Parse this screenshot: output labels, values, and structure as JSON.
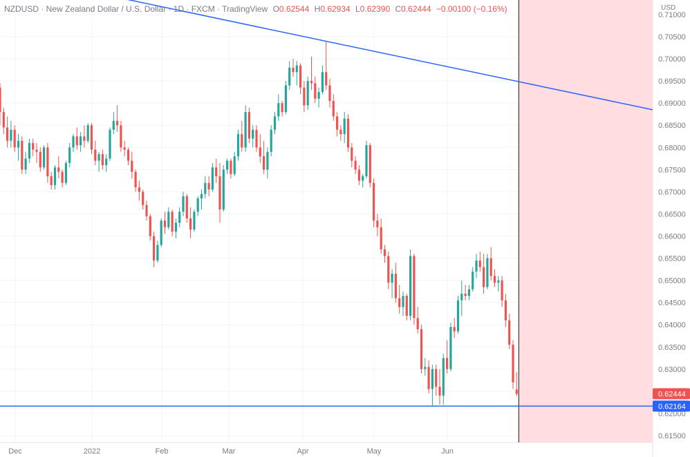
{
  "header": {
    "symbol_line": "NZDUSD · New Zealand Dollar / U.S. Dollar · 1D · FXCM · TradingView",
    "o_label": "O",
    "o_value": "0.62544",
    "h_label": "H",
    "h_value": "0.62934",
    "l_label": "L",
    "l_value": "0.62390",
    "c_label": "C",
    "c_value": "0.62444",
    "change": "−0.00100 (−0.16%)"
  },
  "price_axis": {
    "unit": "USD",
    "ticks": [
      "0.71000",
      "0.70500",
      "0.70000",
      "0.69500",
      "0.69000",
      "0.68500",
      "0.68000",
      "0.67500",
      "0.67000",
      "0.66500",
      "0.66000",
      "0.65500",
      "0.65000",
      "0.64500",
      "0.64000",
      "0.63500",
      "0.63000",
      "0.62500",
      "0.62000",
      "0.61500"
    ]
  },
  "time_axis": {
    "labels": [
      "Dec",
      "2022",
      "Feb",
      "Mar",
      "Apr",
      "May",
      "Jun"
    ]
  },
  "markers": {
    "last_price": {
      "label": "0.62444",
      "value": 0.62444,
      "color": "#ef5350"
    },
    "hline": {
      "label": "0.62164",
      "value": 0.62164,
      "color": "#2962ff"
    }
  },
  "colors": {
    "up": "#26a69a",
    "down": "#ef5350",
    "trendline": "#2962ff",
    "shade": "#ffdde0",
    "grid": "#f0f3fa"
  },
  "chart_data": {
    "type": "candlestick",
    "title": "NZDUSD · New Zealand Dollar / U.S. Dollar · 1D · FXCM · TradingView",
    "ylabel": "USD",
    "ylim": [
      0.6125,
      0.712
    ],
    "x_labels": [
      "Dec",
      "2022",
      "Feb",
      "Mar",
      "Apr",
      "May",
      "Jun"
    ],
    "trendline": {
      "start_value": 0.7145,
      "mid_value": 0.6965,
      "end_value": 0.6885
    },
    "horizontal_line": 0.62164,
    "candles": [
      [
        0.6935,
        0.6945,
        0.685,
        0.688
      ],
      [
        0.688,
        0.689,
        0.683,
        0.6845
      ],
      [
        0.6845,
        0.687,
        0.68,
        0.6815
      ],
      [
        0.6815,
        0.686,
        0.68,
        0.684
      ],
      [
        0.684,
        0.685,
        0.679,
        0.68
      ],
      [
        0.68,
        0.683,
        0.677,
        0.6815
      ],
      [
        0.6815,
        0.6825,
        0.674,
        0.675
      ],
      [
        0.675,
        0.679,
        0.674,
        0.6775
      ],
      [
        0.6775,
        0.682,
        0.6765,
        0.681
      ],
      [
        0.681,
        0.682,
        0.678,
        0.6795
      ],
      [
        0.6795,
        0.681,
        0.6765,
        0.679
      ],
      [
        0.679,
        0.68,
        0.6745,
        0.6755
      ],
      [
        0.6755,
        0.6805,
        0.675,
        0.68
      ],
      [
        0.68,
        0.681,
        0.672,
        0.6735
      ],
      [
        0.6735,
        0.6745,
        0.6705,
        0.6715
      ],
      [
        0.6715,
        0.676,
        0.6705,
        0.6755
      ],
      [
        0.6755,
        0.678,
        0.673,
        0.6745
      ],
      [
        0.6745,
        0.675,
        0.671,
        0.672
      ],
      [
        0.672,
        0.677,
        0.6715,
        0.6765
      ],
      [
        0.6765,
        0.681,
        0.6755,
        0.68
      ],
      [
        0.68,
        0.683,
        0.679,
        0.6825
      ],
      [
        0.6825,
        0.6845,
        0.6795,
        0.6805
      ],
      [
        0.6805,
        0.6835,
        0.679,
        0.6825
      ],
      [
        0.6825,
        0.685,
        0.68,
        0.6815
      ],
      [
        0.6815,
        0.6855,
        0.681,
        0.685
      ],
      [
        0.685,
        0.6855,
        0.6785,
        0.6795
      ],
      [
        0.6795,
        0.6815,
        0.676,
        0.677
      ],
      [
        0.677,
        0.679,
        0.6745,
        0.6785
      ],
      [
        0.6785,
        0.6795,
        0.675,
        0.676
      ],
      [
        0.676,
        0.6785,
        0.6745,
        0.6775
      ],
      [
        0.6775,
        0.6845,
        0.677,
        0.684
      ],
      [
        0.684,
        0.688,
        0.683,
        0.686
      ],
      [
        0.686,
        0.6895,
        0.6835,
        0.685
      ],
      [
        0.685,
        0.686,
        0.679,
        0.68
      ],
      [
        0.68,
        0.6815,
        0.678,
        0.6795
      ],
      [
        0.6795,
        0.68,
        0.676,
        0.677
      ],
      [
        0.677,
        0.679,
        0.673,
        0.6745
      ],
      [
        0.6745,
        0.675,
        0.67,
        0.671
      ],
      [
        0.671,
        0.6725,
        0.668,
        0.67
      ],
      [
        0.67,
        0.6705,
        0.666,
        0.667
      ],
      [
        0.667,
        0.668,
        0.6635,
        0.6645
      ],
      [
        0.6645,
        0.665,
        0.659,
        0.66
      ],
      [
        0.66,
        0.661,
        0.653,
        0.6545
      ],
      [
        0.6545,
        0.659,
        0.654,
        0.658
      ],
      [
        0.658,
        0.664,
        0.6575,
        0.6635
      ],
      [
        0.6635,
        0.6655,
        0.6605,
        0.662
      ],
      [
        0.662,
        0.6665,
        0.6615,
        0.6655
      ],
      [
        0.6655,
        0.666,
        0.66,
        0.661
      ],
      [
        0.661,
        0.664,
        0.6595,
        0.663
      ],
      [
        0.663,
        0.6665,
        0.662,
        0.6655
      ],
      [
        0.6655,
        0.67,
        0.6645,
        0.669
      ],
      [
        0.669,
        0.6695,
        0.663,
        0.664
      ],
      [
        0.664,
        0.6665,
        0.6595,
        0.6615
      ],
      [
        0.6615,
        0.666,
        0.661,
        0.6655
      ],
      [
        0.6655,
        0.669,
        0.6645,
        0.6685
      ],
      [
        0.6685,
        0.6705,
        0.666,
        0.6695
      ],
      [
        0.6695,
        0.6735,
        0.6685,
        0.672
      ],
      [
        0.672,
        0.6735,
        0.669,
        0.6705
      ],
      [
        0.6705,
        0.6765,
        0.67,
        0.6755
      ],
      [
        0.6755,
        0.6775,
        0.672,
        0.6735
      ],
      [
        0.6735,
        0.6765,
        0.663,
        0.666
      ],
      [
        0.666,
        0.676,
        0.6655,
        0.675
      ],
      [
        0.675,
        0.6775,
        0.674,
        0.677
      ],
      [
        0.677,
        0.6775,
        0.673,
        0.674
      ],
      [
        0.674,
        0.679,
        0.6735,
        0.678
      ],
      [
        0.678,
        0.684,
        0.677,
        0.683
      ],
      [
        0.683,
        0.686,
        0.679,
        0.68
      ],
      [
        0.68,
        0.6895,
        0.679,
        0.688
      ],
      [
        0.688,
        0.689,
        0.681,
        0.682
      ],
      [
        0.682,
        0.685,
        0.68,
        0.684
      ],
      [
        0.684,
        0.685,
        0.679,
        0.68
      ],
      [
        0.68,
        0.683,
        0.6765,
        0.678
      ],
      [
        0.678,
        0.6815,
        0.674,
        0.675
      ],
      [
        0.675,
        0.68,
        0.673,
        0.679
      ],
      [
        0.679,
        0.685,
        0.678,
        0.684
      ],
      [
        0.684,
        0.688,
        0.683,
        0.687
      ],
      [
        0.687,
        0.692,
        0.686,
        0.69
      ],
      [
        0.69,
        0.6905,
        0.687,
        0.688
      ],
      [
        0.688,
        0.695,
        0.6875,
        0.694
      ],
      [
        0.694,
        0.6995,
        0.693,
        0.698
      ],
      [
        0.698,
        0.7,
        0.696,
        0.697
      ],
      [
        0.697,
        0.6995,
        0.694,
        0.6985
      ],
      [
        0.6985,
        0.699,
        0.692,
        0.6935
      ],
      [
        0.6935,
        0.695,
        0.688,
        0.6895
      ],
      [
        0.6895,
        0.696,
        0.6885,
        0.695
      ],
      [
        0.695,
        0.7005,
        0.693,
        0.6945
      ],
      [
        0.6945,
        0.696,
        0.69,
        0.691
      ],
      [
        0.691,
        0.6935,
        0.689,
        0.6925
      ],
      [
        0.6925,
        0.6985,
        0.692,
        0.697
      ],
      [
        0.697,
        0.704,
        0.693,
        0.694
      ],
      [
        0.694,
        0.6955,
        0.689,
        0.6905
      ],
      [
        0.6905,
        0.692,
        0.686,
        0.687
      ],
      [
        0.687,
        0.688,
        0.6825,
        0.684
      ],
      [
        0.684,
        0.685,
        0.6815,
        0.683
      ],
      [
        0.683,
        0.688,
        0.681,
        0.6865
      ],
      [
        0.6865,
        0.6875,
        0.679,
        0.68
      ],
      [
        0.68,
        0.681,
        0.6755,
        0.677
      ],
      [
        0.677,
        0.678,
        0.674,
        0.675
      ],
      [
        0.675,
        0.676,
        0.6715,
        0.6725
      ],
      [
        0.6725,
        0.674,
        0.671,
        0.6735
      ],
      [
        0.6735,
        0.6815,
        0.673,
        0.6805
      ],
      [
        0.6805,
        0.681,
        0.671,
        0.672
      ],
      [
        0.672,
        0.673,
        0.662,
        0.6635
      ],
      [
        0.6635,
        0.665,
        0.66,
        0.662
      ],
      [
        0.662,
        0.664,
        0.656,
        0.657
      ],
      [
        0.657,
        0.658,
        0.654,
        0.6555
      ],
      [
        0.6555,
        0.6565,
        0.648,
        0.6495
      ],
      [
        0.6495,
        0.6525,
        0.646,
        0.6515
      ],
      [
        0.6515,
        0.654,
        0.645,
        0.646
      ],
      [
        0.646,
        0.649,
        0.6425,
        0.644
      ],
      [
        0.644,
        0.6475,
        0.642,
        0.6465
      ],
      [
        0.6465,
        0.647,
        0.641,
        0.642
      ],
      [
        0.642,
        0.657,
        0.641,
        0.6555
      ],
      [
        0.6555,
        0.656,
        0.64,
        0.6415
      ],
      [
        0.6415,
        0.644,
        0.638,
        0.639
      ],
      [
        0.639,
        0.64,
        0.629,
        0.63
      ],
      [
        0.63,
        0.6325,
        0.6285,
        0.6305
      ],
      [
        0.6305,
        0.632,
        0.6245,
        0.6255
      ],
      [
        0.6255,
        0.631,
        0.6215,
        0.63
      ],
      [
        0.63,
        0.631,
        0.624,
        0.626
      ],
      [
        0.626,
        0.63,
        0.622,
        0.624
      ],
      [
        0.624,
        0.6335,
        0.622,
        0.6325
      ],
      [
        0.6325,
        0.6365,
        0.629,
        0.63
      ],
      [
        0.63,
        0.6405,
        0.6295,
        0.6395
      ],
      [
        0.6395,
        0.6415,
        0.637,
        0.6385
      ],
      [
        0.6385,
        0.6465,
        0.638,
        0.6455
      ],
      [
        0.6455,
        0.65,
        0.642,
        0.647
      ],
      [
        0.647,
        0.649,
        0.6455,
        0.6465
      ],
      [
        0.6465,
        0.649,
        0.6455,
        0.648
      ],
      [
        0.648,
        0.653,
        0.6475,
        0.652
      ],
      [
        0.652,
        0.656,
        0.6505,
        0.6545
      ],
      [
        0.6545,
        0.6565,
        0.652,
        0.653
      ],
      [
        0.653,
        0.656,
        0.647,
        0.6485
      ],
      [
        0.6485,
        0.656,
        0.648,
        0.655
      ],
      [
        0.655,
        0.6575,
        0.65,
        0.651
      ],
      [
        0.651,
        0.6525,
        0.6485,
        0.6495
      ],
      [
        0.6495,
        0.651,
        0.6475,
        0.65
      ],
      [
        0.65,
        0.651,
        0.644,
        0.6455
      ],
      [
        0.6455,
        0.647,
        0.6395,
        0.641
      ],
      [
        0.641,
        0.6425,
        0.6345,
        0.6355
      ],
      [
        0.6355,
        0.6365,
        0.6255,
        0.627
      ],
      [
        0.6254,
        0.6293,
        0.6239,
        0.6244
      ]
    ]
  }
}
